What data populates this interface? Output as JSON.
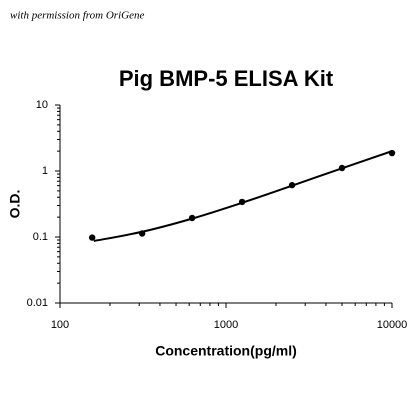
{
  "chart_data": {
    "type": "scatter",
    "annotation": "with permission from OriGene",
    "title": "Pig BMP-5 ELISA Kit",
    "x_label": "Concentration(pg/ml)",
    "y_label": "O.D.",
    "x": [
      156.25,
      312.5,
      625,
      1250,
      2500,
      5000,
      10000
    ],
    "values": [
      0.098,
      0.113,
      0.194,
      0.34,
      0.61,
      1.11,
      1.87
    ],
    "fit_x": [
      160,
      312.5,
      625,
      1250,
      2500,
      5000,
      10000
    ],
    "fit_values": [
      0.087,
      0.12,
      0.19,
      0.33,
      0.6,
      1.1,
      2.0
    ],
    "color": "#000000",
    "xlim": [
      100,
      10000
    ],
    "ylim": [
      0.01,
      10
    ],
    "xticks": [
      100,
      1000,
      10000
    ],
    "yticks": [
      0.01,
      0.1,
      1,
      10
    ],
    "xscale": "log",
    "yscale": "log"
  }
}
